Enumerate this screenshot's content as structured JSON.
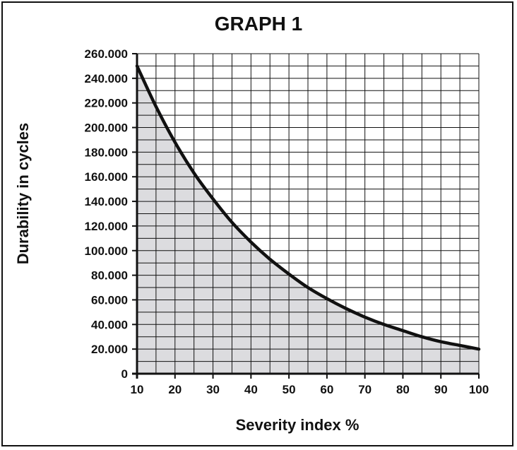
{
  "chart_data": {
    "type": "area",
    "title": "GRAPH 1",
    "xlabel": "Severity index %",
    "ylabel": "Durability in cycles",
    "xlim": [
      10,
      100
    ],
    "ylim": [
      0,
      260000
    ],
    "x_ticks": [
      10,
      20,
      30,
      40,
      50,
      60,
      70,
      80,
      90,
      100
    ],
    "x_tick_labels": [
      "10",
      "20",
      "30",
      "40",
      "50",
      "60",
      "70",
      "80",
      "90",
      "100"
    ],
    "y_ticks": [
      0,
      20000,
      40000,
      60000,
      80000,
      100000,
      120000,
      140000,
      160000,
      180000,
      200000,
      220000,
      240000,
      260000
    ],
    "y_tick_labels": [
      "0",
      "20.000",
      "40.000",
      "60.000",
      "80.000",
      "100.000",
      "120.000",
      "140.000",
      "160.000",
      "180.000",
      "200.000",
      "220.000",
      "240.000",
      "260.000"
    ],
    "grid": true,
    "colors": {
      "line": "#111111",
      "fill": "#dcdcdf",
      "grid": "#111111"
    },
    "series": [
      {
        "x": [
          10,
          15,
          20,
          25,
          30,
          35,
          40,
          45,
          50,
          55,
          60,
          65,
          70,
          75,
          80,
          85,
          90,
          95,
          100
        ],
        "values": [
          250000,
          217000,
          188000,
          163000,
          142000,
          123000,
          107000,
          93000,
          81000,
          70000,
          61000,
          53000,
          46000,
          40000,
          35000,
          30000,
          26000,
          23000,
          20000
        ]
      }
    ]
  }
}
